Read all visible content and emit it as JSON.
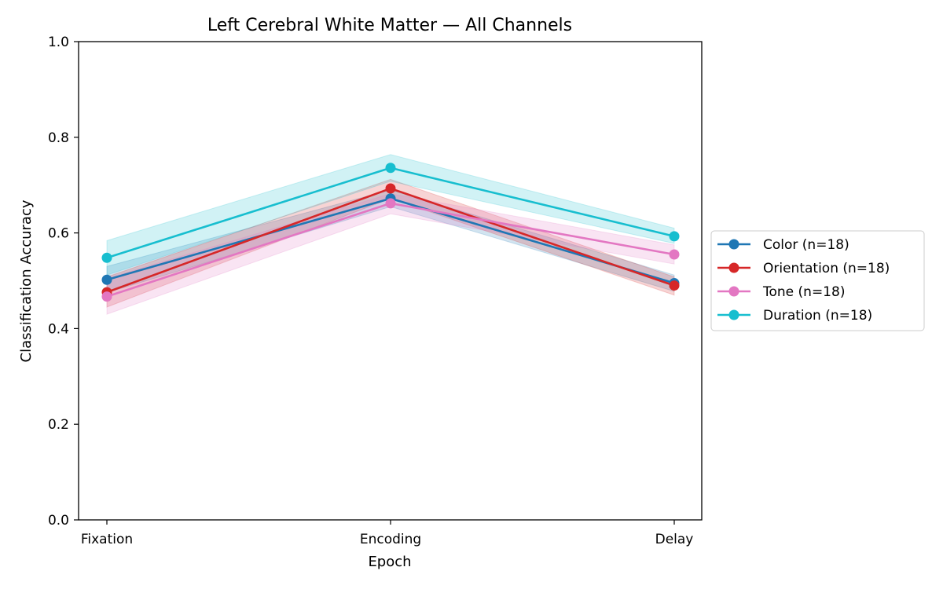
{
  "chart_data": {
    "type": "line",
    "title": "Left Cerebral White Matter — All Channels",
    "xlabel": "Epoch",
    "ylabel": "Classification Accuracy",
    "categories": [
      "Fixation",
      "Encoding",
      "Delay"
    ],
    "ylim": [
      0.0,
      1.0
    ],
    "yticks": [
      "0.0",
      "0.2",
      "0.4",
      "0.6",
      "0.8",
      "1.0"
    ],
    "grid": false,
    "legend_position": "right, outside plot",
    "series": [
      {
        "name": "Color (n=18)",
        "color": "#1f77b4",
        "values": [
          0.502,
          0.672,
          0.495
        ],
        "lower": [
          0.475,
          0.655,
          0.478
        ],
        "upper": [
          0.53,
          0.69,
          0.512
        ]
      },
      {
        "name": "Orientation (n=18)",
        "color": "#d62728",
        "values": [
          0.476,
          0.693,
          0.49
        ],
        "lower": [
          0.445,
          0.672,
          0.47
        ],
        "upper": [
          0.508,
          0.712,
          0.508
        ]
      },
      {
        "name": "Tone (n=18)",
        "color": "#e377c2",
        "values": [
          0.467,
          0.662,
          0.555
        ],
        "lower": [
          0.43,
          0.64,
          0.535
        ],
        "upper": [
          0.505,
          0.682,
          0.575
        ]
      },
      {
        "name": "Duration (n=18)",
        "color": "#17becf",
        "values": [
          0.548,
          0.736,
          0.593
        ],
        "lower": [
          0.512,
          0.708,
          0.578
        ],
        "upper": [
          0.584,
          0.764,
          0.61
        ]
      }
    ]
  }
}
